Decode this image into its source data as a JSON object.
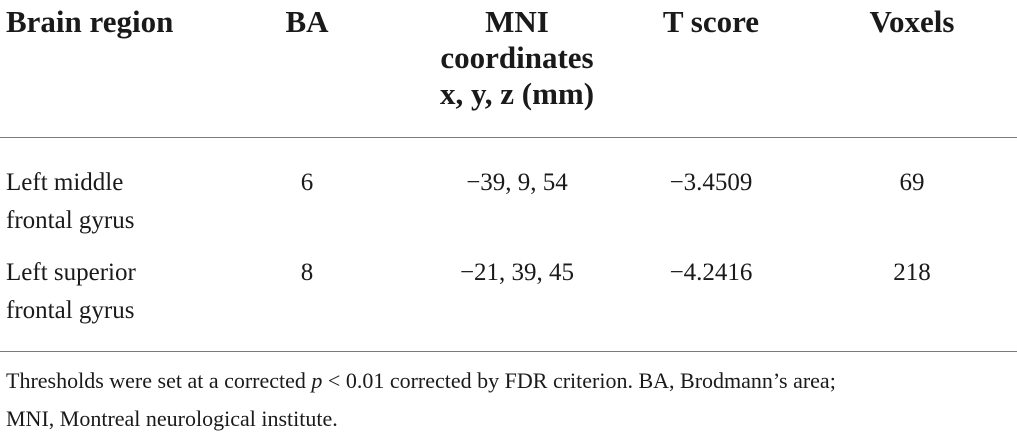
{
  "table": {
    "headers": {
      "brain_region": "Brain region",
      "ba": "BA",
      "mni_line1": "MNI",
      "mni_line2": "coordinates",
      "mni_line3": "x, y, z (mm)",
      "t_score": "T score",
      "voxels": "Voxels"
    },
    "rows": [
      {
        "region_line1": "Left middle",
        "region_line2": "frontal gyrus",
        "ba": "6",
        "mni": "−39, 9, 54",
        "t_score": "−3.4509",
        "voxels": "69"
      },
      {
        "region_line1": "Left superior",
        "region_line2": "frontal gyrus",
        "ba": "8",
        "mni": "−21, 39, 45",
        "t_score": "−4.2416",
        "voxels": "218"
      }
    ]
  },
  "footnote": {
    "part1": "Thresholds were set at a corrected ",
    "p_symbol": "p",
    "part2": " < 0.01 corrected by FDR criterion. BA, Brodmann’s area;",
    "part3": "MNI, Montreal neurological institute."
  }
}
